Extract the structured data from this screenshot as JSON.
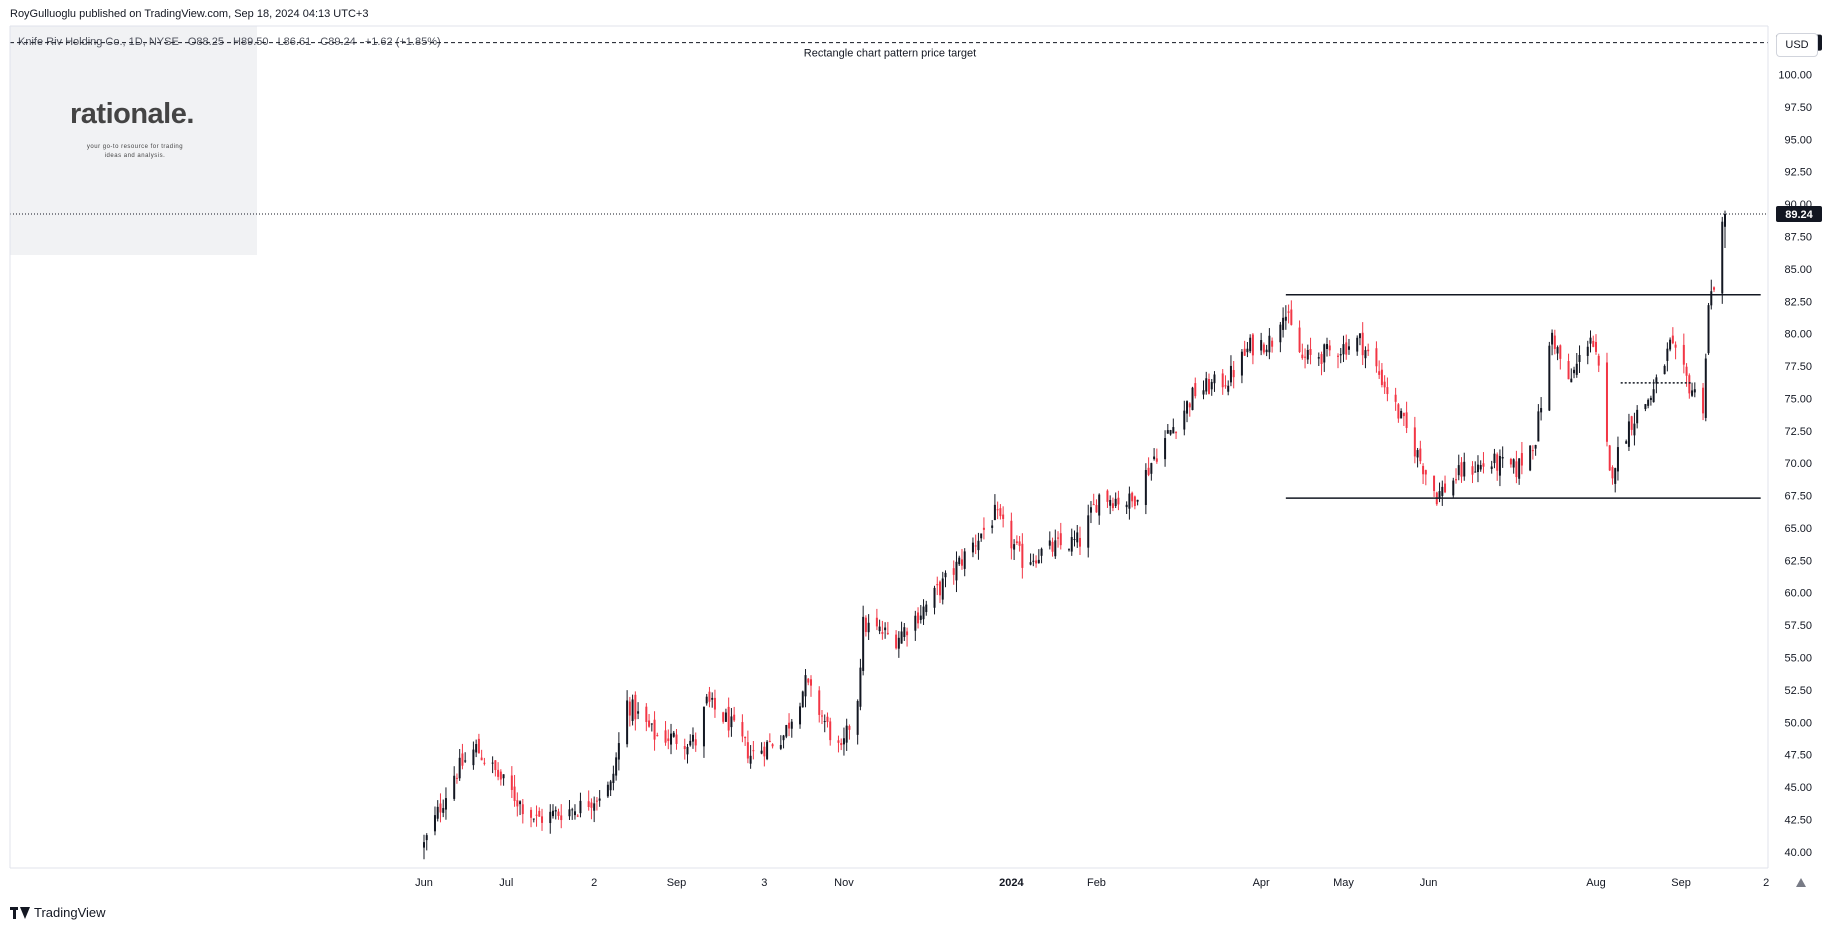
{
  "publisher": "RoyGulluoglu published on TradingView.com, Sep 18, 2024 04:13 UTC+3",
  "symbol": {
    "name": "Knife Riv Holding Co., 1D, NYSE",
    "open": "O88.25",
    "high": "H89.50",
    "low": "L86.61",
    "close": "C89.24",
    "change": "+1.62 (+1.85%)"
  },
  "watermark": {
    "logo": "rationale.",
    "tagline_1": "your go-to resource for trading",
    "tagline_2": "ideas and analysis."
  },
  "currency_button": "USD",
  "brand": "TradingView",
  "colors": {
    "up": "#131722",
    "down": "#f23645",
    "grid": "#f0f3fa",
    "text": "#131722"
  },
  "chart_data": {
    "type": "candlestick",
    "annotation": "Rectangle chart pattern price target",
    "ylim": [
      38.75,
      103.75
    ],
    "y_ticks": [
      "40.00",
      "42.50",
      "45.00",
      "47.50",
      "50.00",
      "52.50",
      "55.00",
      "57.50",
      "60.00",
      "62.50",
      "65.00",
      "67.50",
      "70.00",
      "72.50",
      "75.00",
      "77.50",
      "80.00",
      "82.50",
      "85.00",
      "87.50",
      "90.00",
      "92.50",
      "95.00",
      "97.50",
      "100.00"
    ],
    "x_labels": [
      "Jun",
      "Jul",
      "2",
      "Sep",
      "3",
      "Nov",
      "2024",
      "Feb",
      "Apr",
      "May",
      "Jun",
      "Aug",
      "Sep",
      "2"
    ],
    "price_labels": {
      "target": "102.47",
      "last": "89.24"
    },
    "levels": {
      "target": 102.47,
      "last": 89.24,
      "resistance": 83.0,
      "support": 67.3,
      "dotted_mid": 76.2
    },
    "anchors": [
      {
        "d": "2023-06-01",
        "p": 40.5
      },
      {
        "d": "2023-06-12",
        "p": 46
      },
      {
        "d": "2023-06-20",
        "p": 48
      },
      {
        "d": "2023-07-05",
        "p": 44
      },
      {
        "d": "2023-07-12",
        "p": 42.5
      },
      {
        "d": "2023-07-28",
        "p": 43.5
      },
      {
        "d": "2023-08-08",
        "p": 45
      },
      {
        "d": "2023-08-14",
        "p": 51.5
      },
      {
        "d": "2023-08-24",
        "p": 49
      },
      {
        "d": "2023-09-08",
        "p": 48.5
      },
      {
        "d": "2023-09-12",
        "p": 51.5
      },
      {
        "d": "2023-09-20",
        "p": 50
      },
      {
        "d": "2023-09-28",
        "p": 47.5
      },
      {
        "d": "2023-10-10",
        "p": 49
      },
      {
        "d": "2023-10-18",
        "p": 53
      },
      {
        "d": "2023-10-31",
        "p": 47.5
      },
      {
        "d": "2023-11-06",
        "p": 52
      },
      {
        "d": "2023-11-08",
        "p": 57.5
      },
      {
        "d": "2023-11-20",
        "p": 56.5
      },
      {
        "d": "2023-12-01",
        "p": 59
      },
      {
        "d": "2023-12-12",
        "p": 62
      },
      {
        "d": "2023-12-26",
        "p": 66
      },
      {
        "d": "2024-01-05",
        "p": 62.5
      },
      {
        "d": "2024-01-17",
        "p": 63.5
      },
      {
        "d": "2024-01-26",
        "p": 64
      },
      {
        "d": "2024-02-02",
        "p": 67.5
      },
      {
        "d": "2024-02-14",
        "p": 67
      },
      {
        "d": "2024-02-22",
        "p": 70.5
      },
      {
        "d": "2024-02-28",
        "p": 72.5
      },
      {
        "d": "2024-03-08",
        "p": 75.5
      },
      {
        "d": "2024-03-20",
        "p": 76.5
      },
      {
        "d": "2024-03-28",
        "p": 79
      },
      {
        "d": "2024-04-05",
        "p": 79.5
      },
      {
        "d": "2024-04-09",
        "p": 82
      },
      {
        "d": "2024-04-16",
        "p": 78
      },
      {
        "d": "2024-04-25",
        "p": 78.5
      },
      {
        "d": "2024-05-07",
        "p": 79.5
      },
      {
        "d": "2024-05-15",
        "p": 76.5
      },
      {
        "d": "2024-05-24",
        "p": 72.5
      },
      {
        "d": "2024-06-04",
        "p": 67.5
      },
      {
        "d": "2024-06-14",
        "p": 69.5
      },
      {
        "d": "2024-06-25",
        "p": 70
      },
      {
        "d": "2024-07-03",
        "p": 69.5
      },
      {
        "d": "2024-07-10",
        "p": 72
      },
      {
        "d": "2024-07-16",
        "p": 80
      },
      {
        "d": "2024-07-22",
        "p": 76
      },
      {
        "d": "2024-07-30",
        "p": 80
      },
      {
        "d": "2024-08-02",
        "p": 77
      },
      {
        "d": "2024-08-06",
        "p": 69
      },
      {
        "d": "2024-08-13",
        "p": 73
      },
      {
        "d": "2024-08-22",
        "p": 75.5
      },
      {
        "d": "2024-08-28",
        "p": 79
      },
      {
        "d": "2024-09-04",
        "p": 76
      },
      {
        "d": "2024-09-09",
        "p": 74.5
      },
      {
        "d": "2024-09-11",
        "p": 82
      },
      {
        "d": "2024-09-13",
        "p": 84
      },
      {
        "d": "2024-09-17",
        "p": 89.24
      }
    ]
  }
}
